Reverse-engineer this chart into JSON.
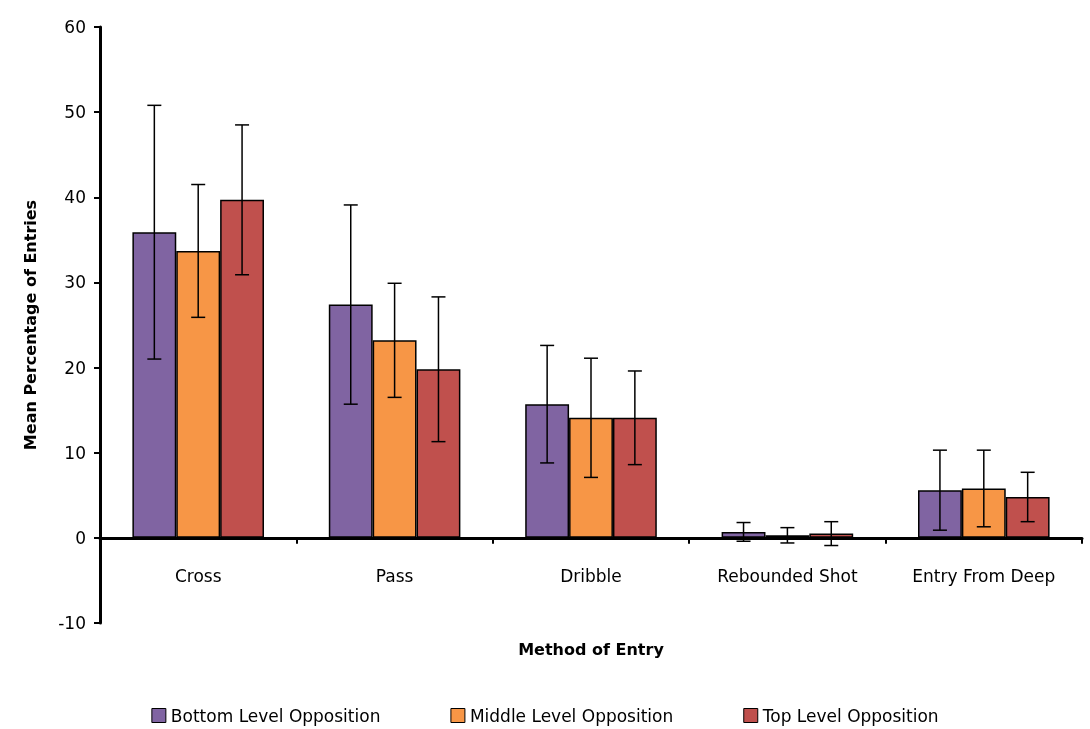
{
  "chart_data": {
    "type": "bar",
    "xlabel": "Method of Entry",
    "ylabel": "Mean Percentage of Entries",
    "categories": [
      "Cross",
      "Pass",
      "Dribble",
      "Rebounded Shot",
      "Entry From Deep"
    ],
    "series": [
      {
        "name": "Bottom Level Opposition",
        "color": "#8064a2",
        "values": [
          35.9,
          27.4,
          15.7,
          0.7,
          5.6
        ],
        "errors": [
          14.9,
          11.7,
          6.9,
          1.1,
          4.7
        ]
      },
      {
        "name": "Middle Level Opposition",
        "color": "#f79646",
        "values": [
          33.7,
          23.2,
          14.1,
          0.3,
          5.8
        ],
        "errors": [
          7.8,
          6.7,
          7.0,
          0.9,
          4.5
        ]
      },
      {
        "name": "Top Level Opposition",
        "color": "#c0504d",
        "values": [
          39.7,
          19.8,
          14.1,
          0.5,
          4.8
        ],
        "errors": [
          8.8,
          8.5,
          5.5,
          1.4,
          2.9
        ]
      }
    ],
    "ylim": [
      -10,
      60
    ],
    "yticks": [
      -10,
      0,
      10,
      20,
      30,
      40,
      50,
      60
    ],
    "grid": false,
    "legend": "bottom"
  }
}
